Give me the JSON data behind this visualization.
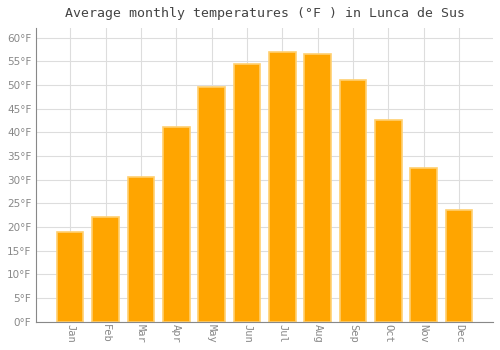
{
  "title": "Average monthly temperatures (°F ) in Lunca de Sus",
  "months": [
    "Jan",
    "Feb",
    "Mar",
    "Apr",
    "May",
    "Jun",
    "Jul",
    "Aug",
    "Sep",
    "Oct",
    "Nov",
    "Dec"
  ],
  "values": [
    19,
    22,
    30.5,
    41,
    49.5,
    54.5,
    57,
    56.5,
    51,
    42.5,
    32.5,
    23.5
  ],
  "bar_color": "#FFA500",
  "bar_edge_color": "#FFD070",
  "background_color": "#FFFFFF",
  "grid_color": "#DDDDDD",
  "ylim": [
    0,
    62
  ],
  "yticks": [
    0,
    5,
    10,
    15,
    20,
    25,
    30,
    35,
    40,
    45,
    50,
    55,
    60
  ],
  "title_fontsize": 9.5,
  "tick_fontsize": 7.5,
  "tick_label_color": "#888888",
  "title_color": "#444444"
}
